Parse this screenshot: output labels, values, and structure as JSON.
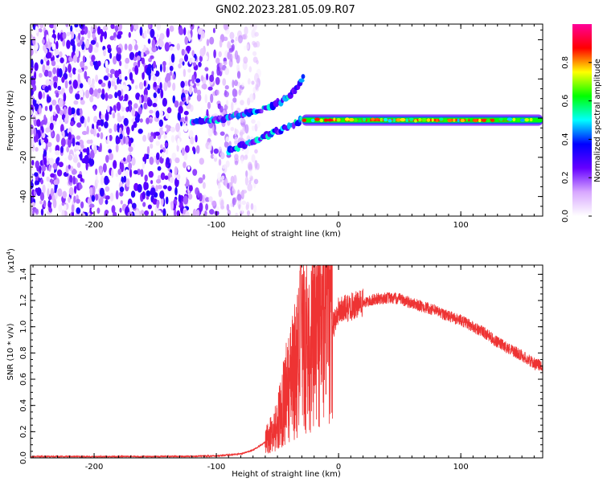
{
  "title": "GN02.2023.281.05.09.R07",
  "colors": {
    "snr_line": "#ee3333",
    "axis": "#000000",
    "background": "#ffffff"
  },
  "chart_data": [
    {
      "type": "heatmap",
      "xlabel": "Height of straight line (km)",
      "ylabel": "Frequency (Hz)",
      "xlim": [
        -252,
        167
      ],
      "ylim": [
        -50,
        48
      ],
      "xticks": [
        -200,
        -100,
        0,
        100
      ],
      "xtick_labels": [
        "-200",
        "-100",
        "0",
        "100"
      ],
      "yticks": [
        -40,
        -20,
        0,
        20,
        40
      ],
      "ytick_labels": [
        "-40",
        "-20",
        "0",
        "20",
        "40"
      ],
      "colorbar": {
        "label": "Normalized spectral amplitude",
        "range": [
          0.0,
          1.0
        ],
        "ticks": [
          0.0,
          0.2,
          0.4,
          0.6,
          0.8
        ],
        "tick_labels": [
          "0.0",
          "0.2",
          "0.4",
          "0.6",
          "0.8"
        ],
        "colors": [
          "#ffffff",
          "#d8a8ff",
          "#6600ff",
          "#0000ff",
          "#00ffff",
          "#00ff00",
          "#ffff00",
          "#ff0000",
          "#ff0099"
        ]
      },
      "features": {
        "noise_region_x": [
          -252,
          -85
        ],
        "carrier_line_start_km": -30,
        "carrier_frequency_hz": -1,
        "upper_branch": [
          [
            -120,
            -2
          ],
          [
            -100,
            -1
          ],
          [
            -80,
            2
          ],
          [
            -60,
            5
          ],
          [
            -45,
            9
          ],
          [
            -35,
            14
          ],
          [
            -28,
            22
          ]
        ],
        "lower_branch": [
          [
            -90,
            -17
          ],
          [
            -70,
            -12
          ],
          [
            -55,
            -8
          ],
          [
            -40,
            -4
          ],
          [
            -30,
            -1
          ]
        ]
      }
    },
    {
      "type": "line",
      "xlabel": "Height of straight line (km)",
      "ylabel": "SNR (10 * v/v)",
      "y_scale_label": "(x10",
      "y_scale_exponent": "4",
      "xlim": [
        -252,
        167
      ],
      "ylim": [
        0.0,
        1.47
      ],
      "xticks": [
        -200,
        -100,
        0,
        100
      ],
      "xtick_labels": [
        "-200",
        "-100",
        "0",
        "100"
      ],
      "yticks": [
        0.0,
        0.2,
        0.4,
        0.6,
        0.8,
        1.0,
        1.2,
        1.4
      ],
      "ytick_labels": [
        "0.0",
        "0.2",
        "0.4",
        "0.6",
        "0.8",
        "1.0",
        "1.2",
        "1.4"
      ],
      "envelope": {
        "x": [
          -252,
          -200,
          -150,
          -100,
          -80,
          -70,
          -60,
          -50,
          -45,
          -40,
          -35,
          -30,
          -25,
          -20,
          -15,
          -10,
          -5,
          0,
          10,
          20,
          30,
          40,
          50,
          60,
          70,
          80,
          90,
          100,
          110,
          120,
          130,
          140,
          150,
          160,
          167
        ],
        "y": [
          0.01,
          0.01,
          0.01,
          0.015,
          0.03,
          0.06,
          0.12,
          0.25,
          0.45,
          0.55,
          0.7,
          0.85,
          0.85,
          0.9,
          1.05,
          1.1,
          1.0,
          1.12,
          1.15,
          1.18,
          1.21,
          1.22,
          1.21,
          1.18,
          1.15,
          1.12,
          1.08,
          1.05,
          1.0,
          0.95,
          0.88,
          0.83,
          0.78,
          0.72,
          0.7
        ]
      }
    }
  ]
}
